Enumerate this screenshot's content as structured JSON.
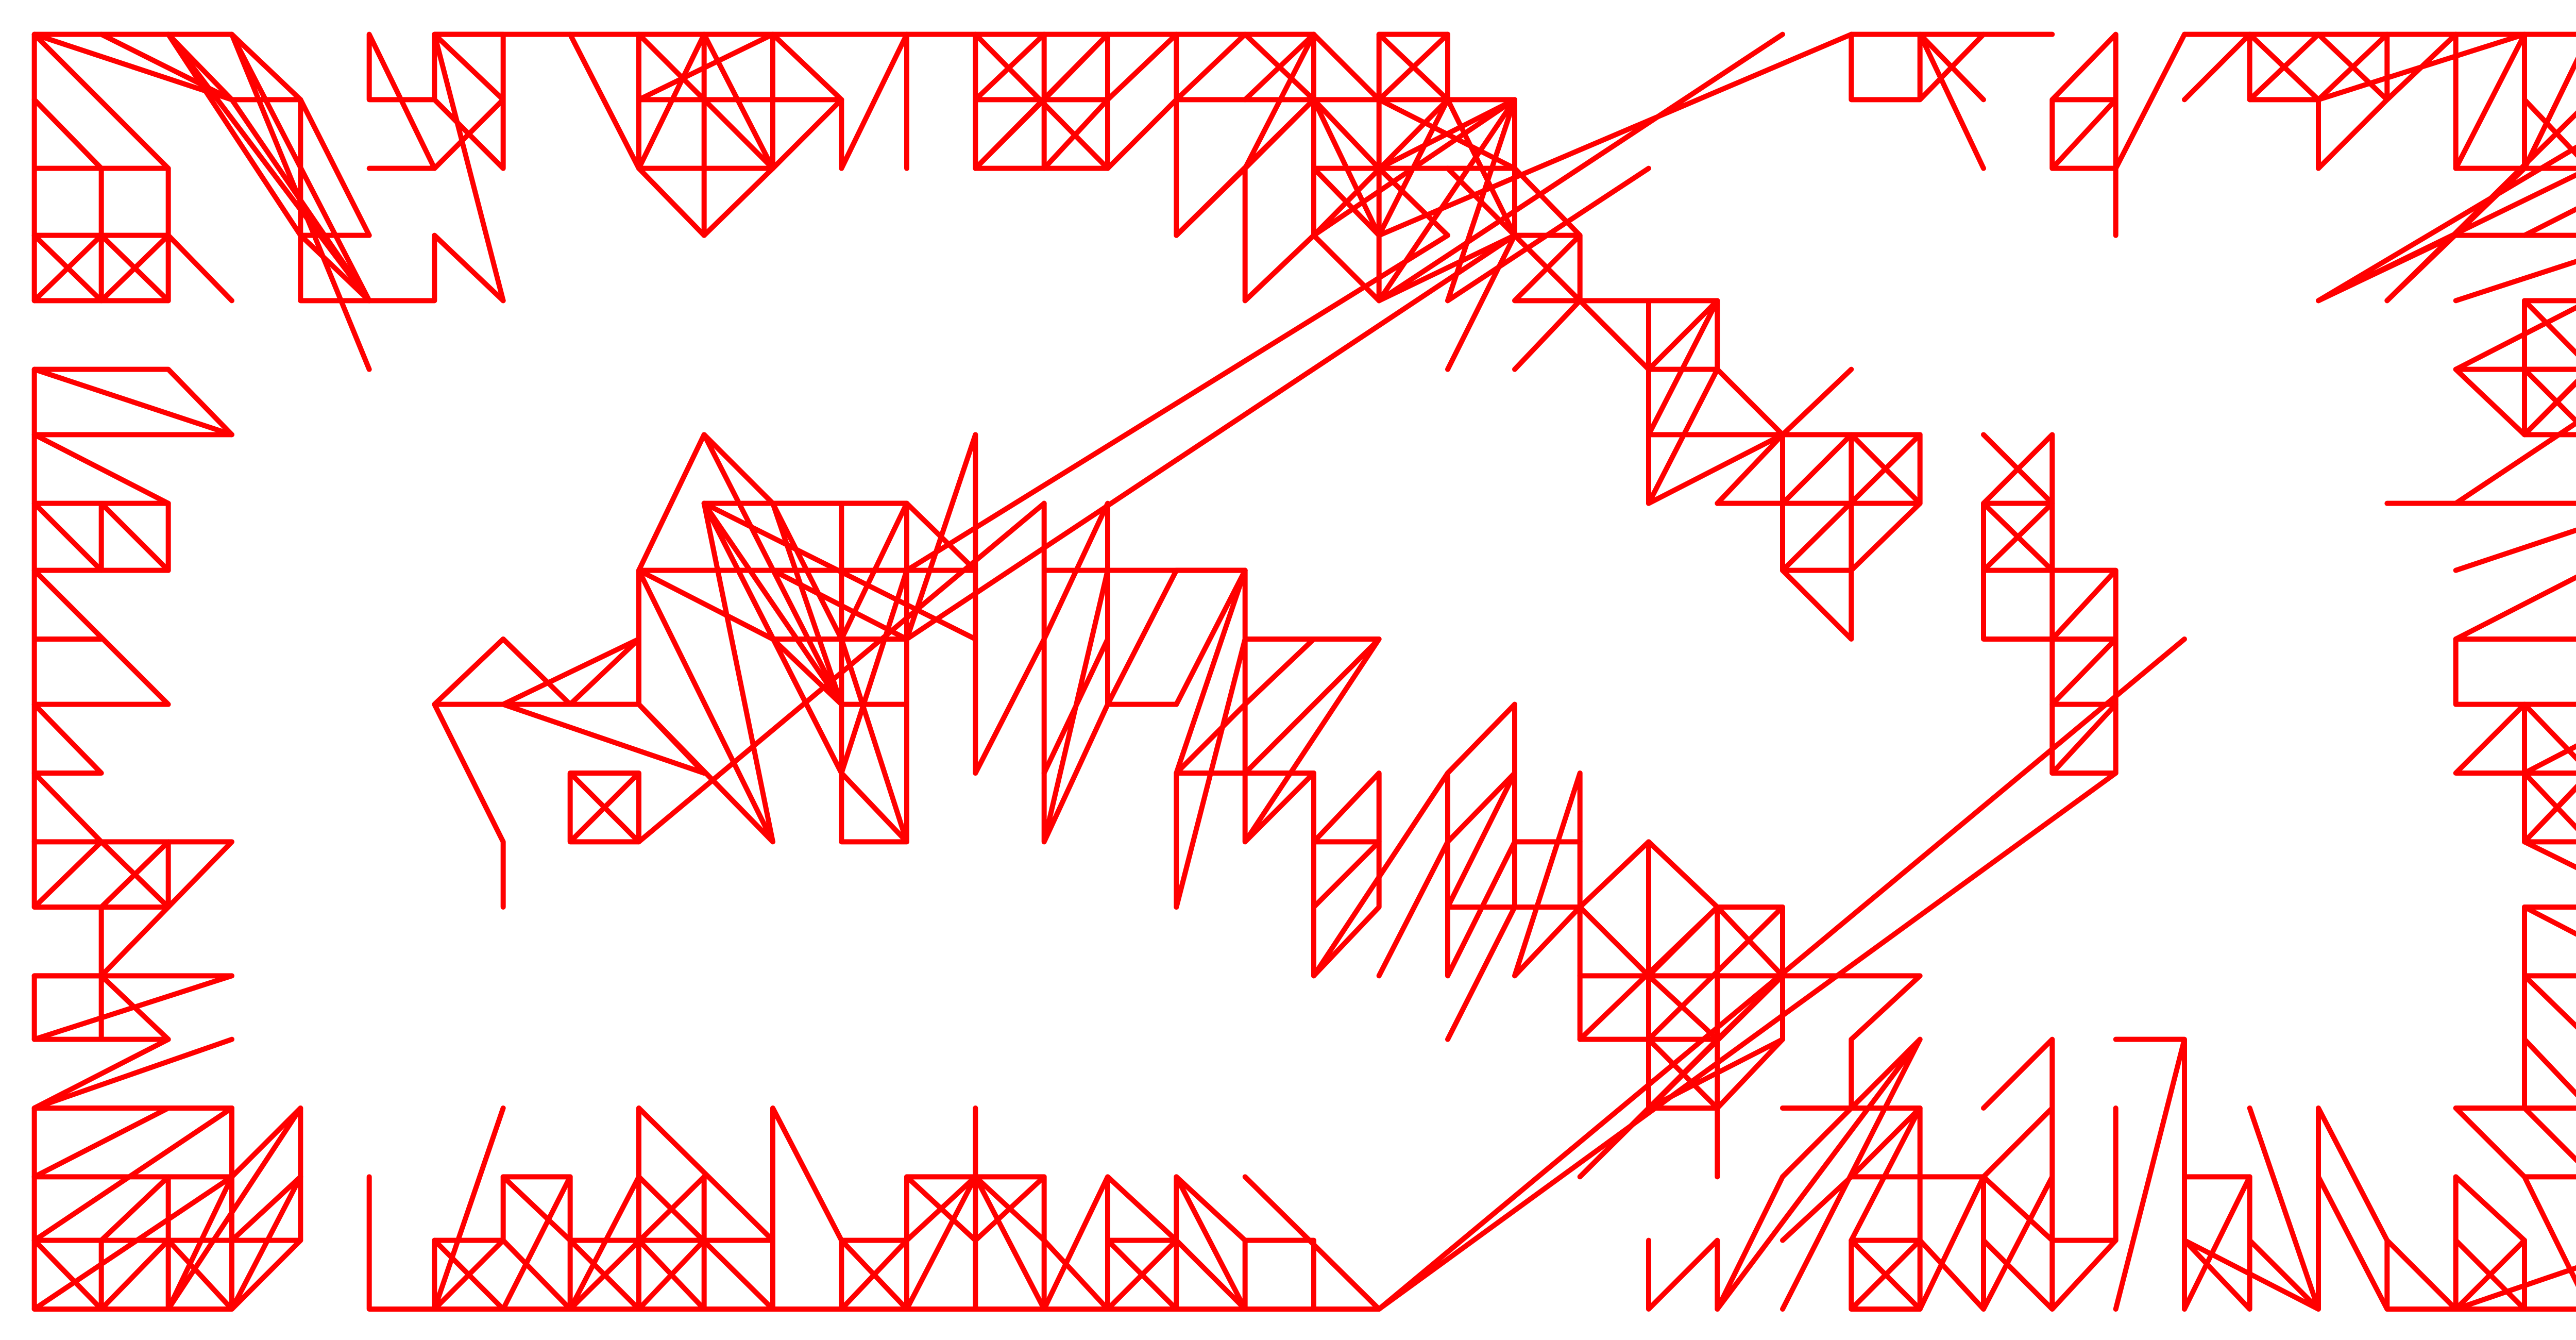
{
  "drawing": {
    "stroke_color": "#ff0000",
    "background_color": "#ffffff"
  }
}
